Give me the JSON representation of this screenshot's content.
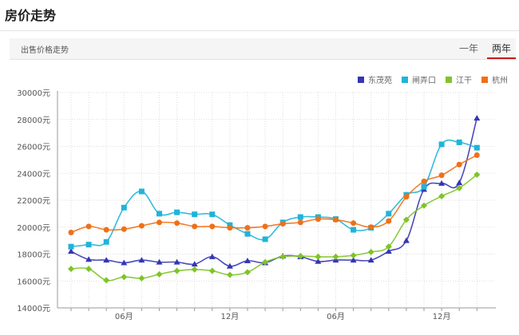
{
  "header": {
    "title": "房价走势"
  },
  "toolbar": {
    "subtitle": "出售价格走势",
    "tabs": [
      {
        "label": "一年",
        "active": false
      },
      {
        "label": "两年",
        "active": true
      }
    ],
    "active_color": "#c81b1b"
  },
  "chart_data": {
    "type": "line",
    "y_unit": "元",
    "ylim": [
      14000,
      30000
    ],
    "yticks": [
      14000,
      16000,
      18000,
      20000,
      22000,
      24000,
      26000,
      28000,
      30000
    ],
    "ytick_labels": [
      "14000元",
      "16000元",
      "18000元",
      "20000元",
      "22000元",
      "24000元",
      "26000元",
      "28000元",
      "30000元"
    ],
    "x_labels": [
      "",
      "",
      "",
      "06月",
      "",
      "",
      "",
      "",
      "",
      "12月",
      "",
      "",
      "",
      "",
      "",
      "06月",
      "",
      "",
      "",
      "",
      "",
      "12月",
      "",
      ""
    ],
    "grid": true,
    "legend_position": "top-right",
    "series": [
      {
        "name": "东茂苑",
        "color": "#3535b5",
        "marker": "triangle",
        "values": [
          18200,
          17600,
          17550,
          17350,
          17550,
          17400,
          17400,
          17250,
          17800,
          17100,
          17500,
          17350,
          17850,
          17800,
          17450,
          17550,
          17550,
          17550,
          18200,
          19000,
          22800,
          23250,
          23300,
          28100
        ]
      },
      {
        "name": "闸弄口",
        "color": "#20b4d8",
        "marker": "square",
        "values": [
          18550,
          18700,
          18900,
          21450,
          22650,
          21000,
          21100,
          20950,
          20950,
          20150,
          19500,
          19100,
          20350,
          20750,
          20750,
          20600,
          19800,
          19950,
          21000,
          22400,
          23000,
          26150,
          26300,
          25900
        ]
      },
      {
        "name": "江干",
        "color": "#7fc428",
        "marker": "diamond",
        "values": [
          16900,
          16900,
          16050,
          16300,
          16200,
          16500,
          16750,
          16850,
          16750,
          16450,
          16650,
          17400,
          17800,
          17850,
          17800,
          17800,
          17900,
          18150,
          18550,
          20550,
          21600,
          22300,
          22900,
          23900
        ]
      },
      {
        "name": "杭州",
        "color": "#ef7018",
        "marker": "circle",
        "values": [
          19600,
          20050,
          19800,
          19850,
          20100,
          20350,
          20300,
          20050,
          20050,
          19950,
          19950,
          20050,
          20250,
          20350,
          20600,
          20550,
          20300,
          20000,
          20450,
          22250,
          23400,
          23850,
          24650,
          25350
        ]
      }
    ]
  }
}
